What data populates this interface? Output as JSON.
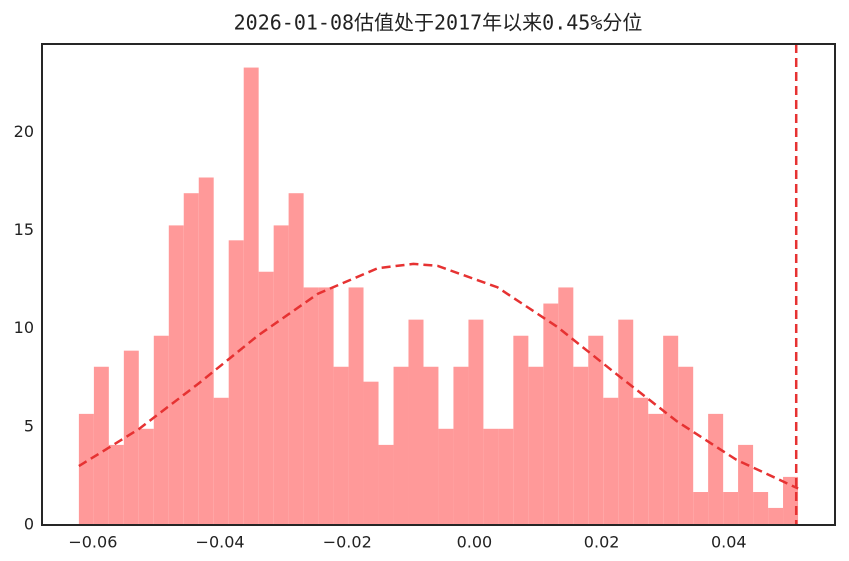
{
  "chart_data": {
    "type": "histogram",
    "title": "2026-01-08估值处于2017年以来0.45%分位",
    "bins": [
      -0.0622,
      -0.05984,
      -0.05749,
      -0.05513,
      -0.05278,
      -0.05042,
      -0.04806,
      -0.04571,
      -0.04335,
      -0.041,
      -0.03864,
      -0.03628,
      -0.03393,
      -0.03157,
      -0.02922,
      -0.02686,
      -0.0245,
      -0.02215,
      -0.01979,
      -0.01744,
      -0.01508,
      -0.01272,
      -0.01037,
      -0.00801,
      -0.00566,
      -0.0033,
      -0.00094,
      0.00141,
      0.00377,
      0.00612,
      0.00848,
      0.01084,
      0.01319,
      0.01555,
      0.0179,
      0.02026,
      0.02262,
      0.02497,
      0.02733,
      0.02968,
      0.03204,
      0.0344,
      0.03675,
      0.03911,
      0.04146,
      0.04382,
      0.04618,
      0.04853,
      0.05089
    ],
    "values": [
      5.66,
      8.06,
      4.08,
      8.88,
      4.9,
      9.64,
      15.26,
      16.9,
      17.7,
      6.48,
      14.5,
      23.3,
      12.9,
      15.26,
      16.9,
      12.1,
      12.1,
      8.06,
      12.1,
      7.3,
      4.08,
      8.06,
      10.46,
      8.06,
      4.9,
      8.06,
      10.46,
      4.9,
      4.9,
      9.64,
      8.06,
      11.28,
      12.1,
      8.06,
      9.64,
      6.48,
      10.46,
      6.48,
      5.66,
      9.64,
      8.06,
      1.68,
      5.66,
      1.68,
      4.08,
      1.68,
      0.87,
      2.45
    ],
    "color": "#ff9999",
    "curve": {
      "x": [
        -0.0622,
        -0.0528,
        -0.0434,
        -0.034,
        -0.0246,
        -0.0152,
        -0.0096,
        -0.0058,
        0.0036,
        0.013,
        0.0224,
        0.0318,
        0.0412,
        0.0509
      ],
      "values": [
        3.0,
        4.88,
        7.2,
        9.66,
        11.78,
        13.08,
        13.3,
        13.2,
        12.11,
        10.1,
        7.67,
        5.29,
        3.32,
        1.86
      ],
      "color": "#e63232"
    },
    "vline": {
      "value": 0.0506,
      "color": "#e63232"
    },
    "xlim": [
      -0.068,
      0.0567
    ],
    "ylim": [
      0,
      24.5
    ],
    "xticks": [
      {
        "value": -0.06,
        "label": "−0.06"
      },
      {
        "value": -0.04,
        "label": "−0.04"
      },
      {
        "value": -0.02,
        "label": "−0.02"
      },
      {
        "value": 0,
        "label": "0.00"
      },
      0.02,
      0.04
    ],
    "yticks": [
      0,
      5,
      10,
      15,
      20
    ]
  }
}
